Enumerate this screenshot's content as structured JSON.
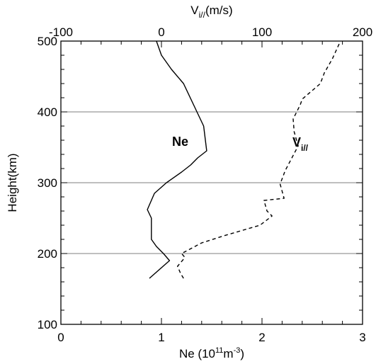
{
  "chart_data": {
    "type": "line",
    "bottom_axis": {
      "label": "Ne (10",
      "label_sup1": "11",
      "label_mid": "m",
      "label_sup2": "-3",
      "label_end": ")",
      "range": [
        0,
        3
      ],
      "ticks": [
        "0",
        "1",
        "2",
        "3"
      ]
    },
    "top_axis": {
      "label": "V",
      "label_sub": "i//",
      "label_end": "(m/s)",
      "range": [
        -100,
        200
      ],
      "ticks": [
        "-100",
        "0",
        "100",
        "200"
      ]
    },
    "y_axis": {
      "label": "Height(km)",
      "range": [
        100,
        500
      ],
      "ticks": [
        "100",
        "200",
        "300",
        "400",
        "500"
      ]
    },
    "gridlines_y": [
      200,
      300,
      400
    ],
    "series": [
      {
        "name": "Ne",
        "axis": "bottom",
        "style": "solid",
        "x": [
          0.88,
          1.08,
          1.02,
          0.95,
          0.9,
          0.9,
          0.86,
          0.93,
          1.05,
          1.2,
          1.29,
          1.36,
          1.45,
          1.42,
          1.32,
          1.22,
          1.1,
          1.0,
          0.95
        ],
        "y": [
          165,
          190,
          200,
          210,
          220,
          250,
          262,
          285,
          300,
          315,
          325,
          335,
          345,
          380,
          410,
          440,
          460,
          480,
          500
        ]
      },
      {
        "name": "V",
        "label_sub": "i//",
        "axis": "top",
        "style": "dashed",
        "x": [
          22,
          19,
          16,
          22,
          23,
          20,
          40,
          62,
          98,
          110,
          105,
          102,
          122,
          118,
          123,
          136,
          132,
          131,
          138,
          140,
          158,
          162,
          170,
          178
        ],
        "y": [
          165,
          172,
          182,
          192,
          195,
          200,
          215,
          225,
          240,
          253,
          260,
          275,
          278,
          298,
          317,
          352,
          372,
          390,
          410,
          418,
          440,
          455,
          475,
          500
        ]
      }
    ]
  }
}
